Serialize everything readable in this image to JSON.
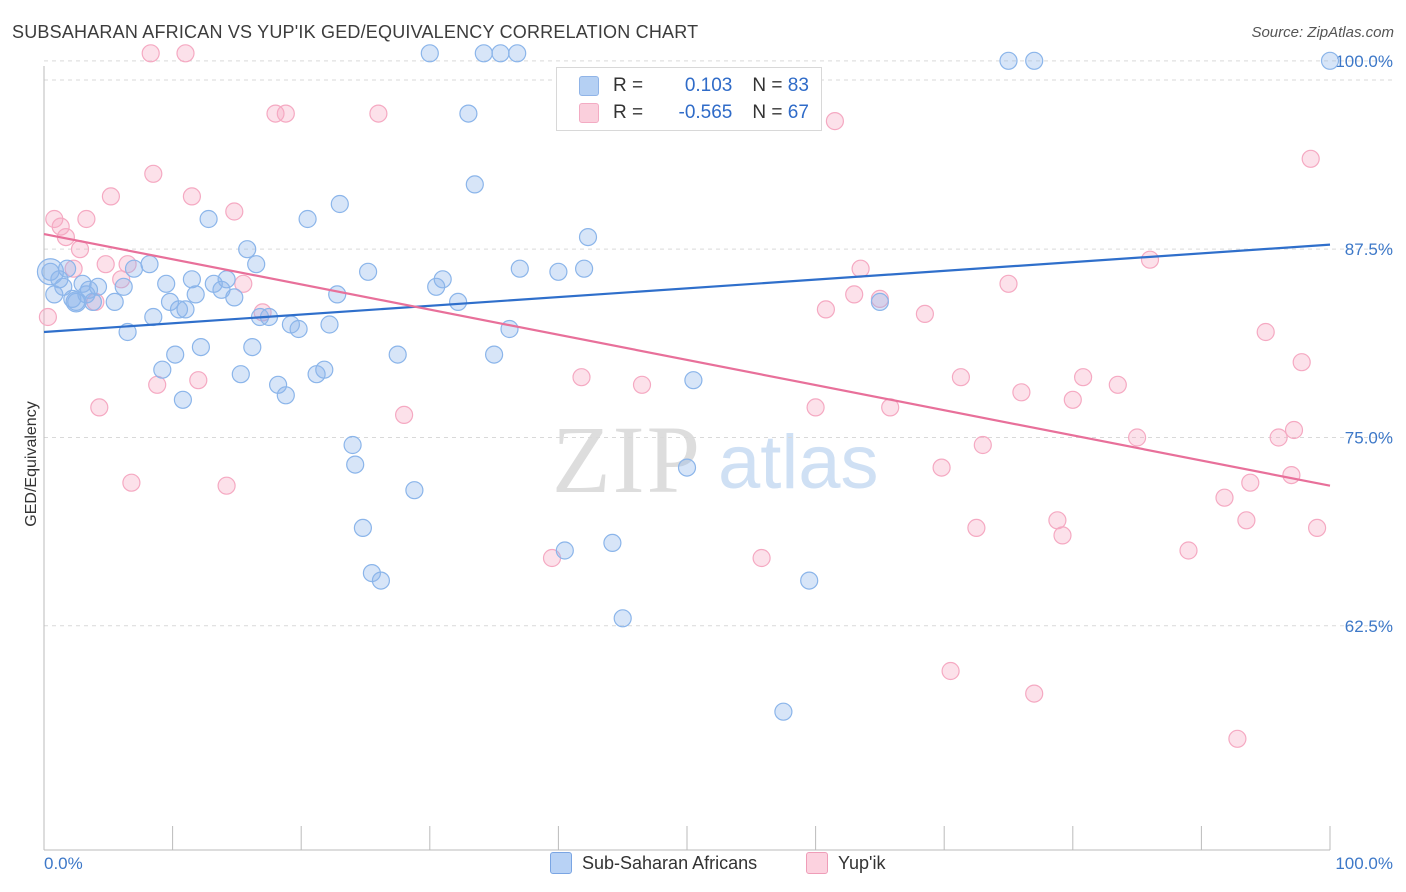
{
  "header": {
    "title": "SUBSAHARAN AFRICAN VS YUP'IK GED/EQUIVALENCY CORRELATION CHART",
    "source": "Source: ZipAtlas.com"
  },
  "watermark": {
    "zip": "ZIP",
    "atlas": "atlas"
  },
  "legend": {
    "rows": [
      {
        "r_label": "R = ",
        "r_value": "0.103",
        "n_label": "N = ",
        "n_value": "83",
        "color": "#9dc1f0",
        "border": "#6b9be0"
      },
      {
        "r_label": "R = ",
        "r_value": "-0.565",
        "n_label": "N = ",
        "n_value": "67",
        "color": "#f9bfd1",
        "border": "#ef8fb0"
      }
    ]
  },
  "bottom_legend": [
    {
      "label": "Sub-Saharan Africans",
      "color": "#b8d2f5",
      "border": "#7aa5e3"
    },
    {
      "label": "Yup'ik",
      "color": "#fcd2df",
      "border": "#ef9db8"
    }
  ],
  "chart_data": {
    "type": "scatter",
    "ylabel": "GED/Equivalency",
    "xlim": [
      0,
      100
    ],
    "ylim": [
      50,
      100
    ],
    "x_tick_labels": [
      "0.0%",
      "100.0%"
    ],
    "y_ticks": [
      62.5,
      75.0,
      87.5,
      100.0
    ],
    "y_tick_labels": [
      "62.5%",
      "75.0%",
      "87.5%",
      "100.0%"
    ],
    "grid": "horizontal-dashed",
    "series": [
      {
        "name": "Sub-Saharan Africans",
        "color": "#8bb5ea",
        "line_color": "#2f6fcb",
        "trend": [
          [
            0,
            82.0
          ],
          [
            100,
            87.8
          ]
        ],
        "points": [
          [
            0.5,
            86.0
          ],
          [
            1.2,
            85.5
          ],
          [
            1.8,
            86.2
          ],
          [
            2.5,
            84.0
          ],
          [
            3.0,
            85.2
          ],
          [
            3.3,
            84.5
          ],
          [
            3.8,
            84.0
          ],
          [
            4.2,
            85.0
          ],
          [
            5.5,
            84.0
          ],
          [
            6.2,
            85.0
          ],
          [
            7.0,
            86.2
          ],
          [
            8.2,
            86.5
          ],
          [
            8.5,
            83.0
          ],
          [
            9.2,
            79.5
          ],
          [
            9.5,
            85.2
          ],
          [
            9.8,
            84.0
          ],
          [
            10.2,
            80.5
          ],
          [
            10.5,
            83.5
          ],
          [
            10.8,
            77.5
          ],
          [
            11.0,
            83.5
          ],
          [
            11.5,
            85.5
          ],
          [
            11.8,
            84.5
          ],
          [
            12.2,
            81.0
          ],
          [
            12.8,
            89.5
          ],
          [
            13.2,
            85.2
          ],
          [
            13.8,
            84.8
          ],
          [
            14.2,
            85.5
          ],
          [
            14.8,
            84.3
          ],
          [
            15.3,
            79.2
          ],
          [
            15.8,
            87.5
          ],
          [
            16.2,
            81.0
          ],
          [
            16.5,
            86.5
          ],
          [
            16.8,
            83.0
          ],
          [
            17.5,
            83.0
          ],
          [
            18.2,
            78.5
          ],
          [
            18.8,
            77.8
          ],
          [
            19.2,
            82.5
          ],
          [
            19.8,
            82.2
          ],
          [
            20.5,
            89.5
          ],
          [
            21.2,
            79.2
          ],
          [
            21.8,
            79.5
          ],
          [
            22.2,
            82.5
          ],
          [
            22.8,
            84.5
          ],
          [
            23.0,
            90.5
          ],
          [
            24.0,
            74.5
          ],
          [
            24.2,
            73.2
          ],
          [
            24.8,
            69.0
          ],
          [
            25.2,
            86.0
          ],
          [
            25.5,
            66.0
          ],
          [
            26.2,
            65.5
          ],
          [
            27.5,
            80.5
          ],
          [
            28.8,
            71.5
          ],
          [
            30.0,
            100.5
          ],
          [
            30.5,
            85.0
          ],
          [
            31.0,
            85.5
          ],
          [
            32.2,
            84.0
          ],
          [
            33.0,
            96.5
          ],
          [
            33.5,
            91.8
          ],
          [
            34.2,
            100.5
          ],
          [
            35.0,
            80.5
          ],
          [
            35.5,
            100.5
          ],
          [
            36.2,
            82.2
          ],
          [
            36.8,
            100.5
          ],
          [
            37.0,
            86.2
          ],
          [
            40.0,
            86.0
          ],
          [
            40.5,
            67.5
          ],
          [
            42.0,
            86.2
          ],
          [
            42.3,
            88.3
          ],
          [
            44.2,
            68.0
          ],
          [
            45.0,
            63.0
          ],
          [
            50.0,
            73.0
          ],
          [
            50.5,
            78.8
          ],
          [
            57.5,
            56.8
          ],
          [
            59.5,
            65.5
          ],
          [
            65.0,
            84.0
          ],
          [
            75.0,
            100.0
          ],
          [
            77.0,
            100.0
          ],
          [
            100.0,
            100.0
          ],
          [
            0.8,
            84.5
          ],
          [
            1.5,
            85.0
          ],
          [
            2.2,
            84.2
          ],
          [
            3.5,
            84.8
          ],
          [
            6.5,
            82.0
          ]
        ]
      },
      {
        "name": "Yup'ik",
        "color": "#f5a9c2",
        "line_color": "#e8709a",
        "trend": [
          [
            0,
            88.5
          ],
          [
            100,
            71.8
          ]
        ],
        "points": [
          [
            0.3,
            83.0
          ],
          [
            0.8,
            89.5
          ],
          [
            1.3,
            89.0
          ],
          [
            1.7,
            88.3
          ],
          [
            2.3,
            86.2
          ],
          [
            2.8,
            87.5
          ],
          [
            3.3,
            89.5
          ],
          [
            4.0,
            84.0
          ],
          [
            4.3,
            77.0
          ],
          [
            4.8,
            86.5
          ],
          [
            5.2,
            91.0
          ],
          [
            6.0,
            85.5
          ],
          [
            6.5,
            86.5
          ],
          [
            6.8,
            72.0
          ],
          [
            8.3,
            100.5
          ],
          [
            8.5,
            92.5
          ],
          [
            8.8,
            78.5
          ],
          [
            11.0,
            100.5
          ],
          [
            11.5,
            91.0
          ],
          [
            12.0,
            78.8
          ],
          [
            14.2,
            71.8
          ],
          [
            14.8,
            90.0
          ],
          [
            15.5,
            85.2
          ],
          [
            17.0,
            83.3
          ],
          [
            18.0,
            96.5
          ],
          [
            18.8,
            96.5
          ],
          [
            26.0,
            96.5
          ],
          [
            28.0,
            76.5
          ],
          [
            39.5,
            67.0
          ],
          [
            41.8,
            79.0
          ],
          [
            46.5,
            78.5
          ],
          [
            55.8,
            67.0
          ],
          [
            60.0,
            77.0
          ],
          [
            60.8,
            83.5
          ],
          [
            61.5,
            96.0
          ],
          [
            63.0,
            84.5
          ],
          [
            63.5,
            86.2
          ],
          [
            65.0,
            84.2
          ],
          [
            65.8,
            77.0
          ],
          [
            68.5,
            83.2
          ],
          [
            69.8,
            73.0
          ],
          [
            70.5,
            59.5
          ],
          [
            71.3,
            79.0
          ],
          [
            72.5,
            69.0
          ],
          [
            73.0,
            74.5
          ],
          [
            75.0,
            85.2
          ],
          [
            76.0,
            78.0
          ],
          [
            77.0,
            58.0
          ],
          [
            78.8,
            69.5
          ],
          [
            79.2,
            68.5
          ],
          [
            80.0,
            77.5
          ],
          [
            80.8,
            79.0
          ],
          [
            83.5,
            78.5
          ],
          [
            85.0,
            75.0
          ],
          [
            86.0,
            86.8
          ],
          [
            89.0,
            67.5
          ],
          [
            91.8,
            71.0
          ],
          [
            92.8,
            55.0
          ],
          [
            93.5,
            69.5
          ],
          [
            93.8,
            72.0
          ],
          [
            95.0,
            82.0
          ],
          [
            96.0,
            75.0
          ],
          [
            97.0,
            72.5
          ],
          [
            97.2,
            75.5
          ],
          [
            97.8,
            80.0
          ],
          [
            98.5,
            93.5
          ],
          [
            99.0,
            69.0
          ]
        ]
      }
    ]
  }
}
